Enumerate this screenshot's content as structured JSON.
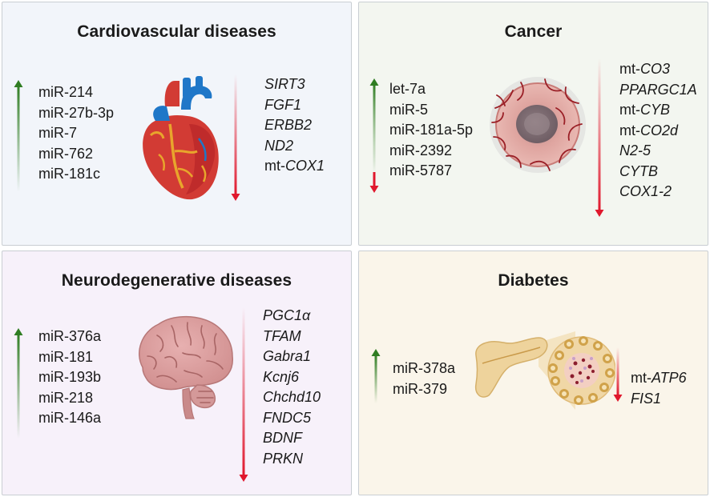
{
  "colors": {
    "up_arrow": "#3c8a2e",
    "down_arrow": "#e0182d",
    "panel_border": "#c9ced3"
  },
  "panels": {
    "cardio": {
      "title": "Cardiovascular diseases",
      "mirnas": [
        "miR-214",
        "miR-27b-3p",
        "miR-7",
        "miR-762",
        "miR-181c"
      ],
      "genes": [
        {
          "prefix": "",
          "name": "SIRT3"
        },
        {
          "prefix": "",
          "name": "FGF1"
        },
        {
          "prefix": "",
          "name": "ERBB2"
        },
        {
          "prefix": "",
          "name": "ND2"
        },
        {
          "prefix": "mt-",
          "name": "COX1"
        }
      ],
      "illustration": "heart-icon"
    },
    "cancer": {
      "title": "Cancer",
      "mirnas": [
        "let-7a",
        "miR-5",
        "miR-181a-5p",
        "miR-2392",
        "miR-5787"
      ],
      "genes": [
        {
          "prefix": "mt-",
          "name": "CO3"
        },
        {
          "prefix": "",
          "name": "PPARGC1A"
        },
        {
          "prefix": "mt-",
          "name": "CYB"
        },
        {
          "prefix": "mt-",
          "name": "CO2d"
        },
        {
          "prefix": "",
          "name": "N2-5"
        },
        {
          "prefix": "",
          "name": "CYTB"
        },
        {
          "prefix": "",
          "name": "COX1-2"
        }
      ],
      "illustration": "tumor-icon"
    },
    "neuro": {
      "title": "Neurodegenerative diseases",
      "mirnas": [
        "miR-376a",
        "miR-181",
        "miR-193b",
        "miR-218",
        "miR-146a"
      ],
      "genes": [
        {
          "prefix": "",
          "name": "PGC1α"
        },
        {
          "prefix": "",
          "name": "TFAM"
        },
        {
          "prefix": "",
          "name": "Gabra1"
        },
        {
          "prefix": "",
          "name": "Kcnj6"
        },
        {
          "prefix": "",
          "name": "Chchd10"
        },
        {
          "prefix": "",
          "name": "FNDC5"
        },
        {
          "prefix": "",
          "name": "BDNF"
        },
        {
          "prefix": "",
          "name": "PRKN"
        }
      ],
      "illustration": "brain-icon"
    },
    "diab": {
      "title": "Diabetes",
      "mirnas": [
        "miR-378a",
        "miR-379"
      ],
      "genes": [
        {
          "prefix": "mt-",
          "name": "ATP6"
        },
        {
          "prefix": "",
          "name": "FIS1"
        }
      ],
      "illustration": "pancreas-icon"
    }
  }
}
